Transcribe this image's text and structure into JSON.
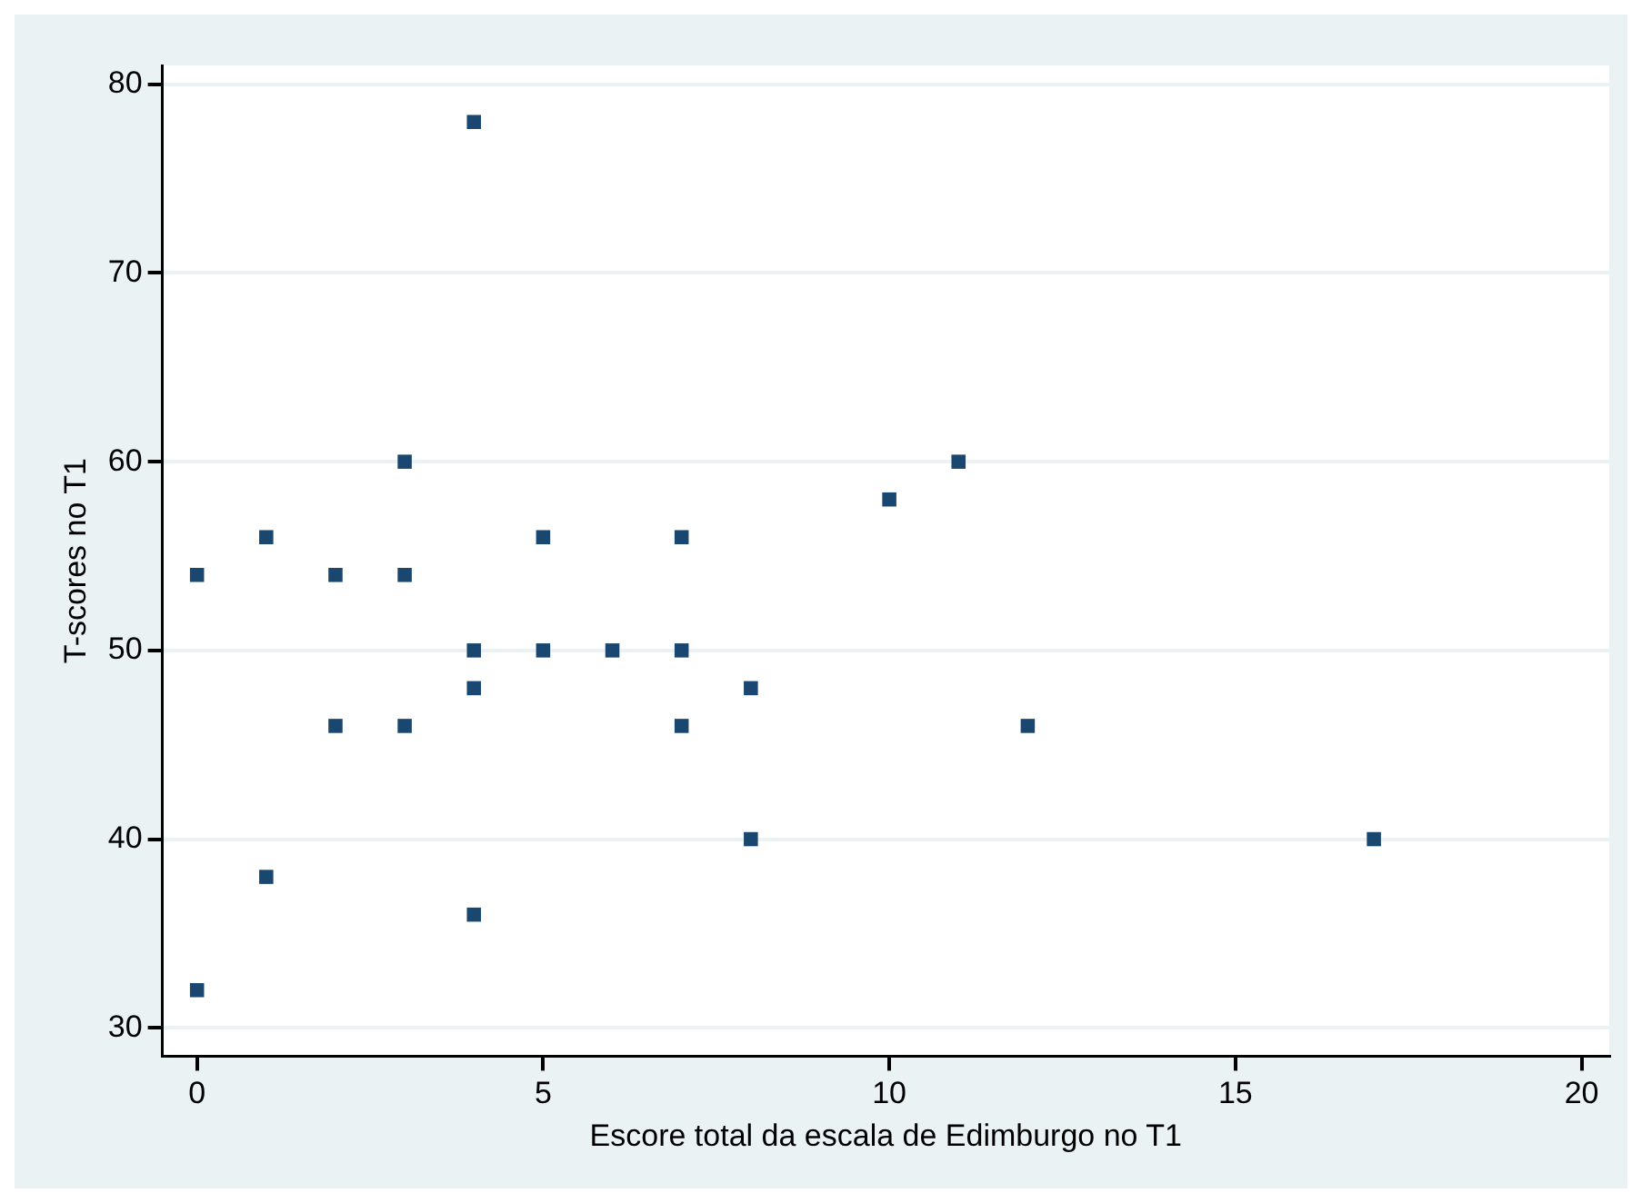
{
  "chart_data": {
    "type": "scatter",
    "xlabel": "Escore total da escala de Edimburgo no T1",
    "ylabel": "T-scores no T1",
    "x": [
      0,
      0,
      1,
      1,
      2,
      2,
      3,
      3,
      3,
      4,
      4,
      4,
      4,
      5,
      5,
      6,
      7,
      7,
      7,
      8,
      8,
      10,
      11,
      12,
      17
    ],
    "values": [
      54,
      32,
      56,
      38,
      54,
      46,
      60,
      54,
      46,
      78,
      50,
      48,
      36,
      56,
      50,
      50,
      56,
      50,
      46,
      48,
      40,
      58,
      60,
      46,
      40
    ],
    "color": "#1a476f",
    "marker": "square",
    "xlim": [
      -0.5,
      20.4
    ],
    "xticks": [
      0,
      5,
      10,
      15,
      20
    ],
    "ylim": [
      28.5,
      81
    ],
    "yticks": [
      30,
      40,
      50,
      60,
      70,
      80
    ],
    "grid": "y",
    "legend": false
  }
}
